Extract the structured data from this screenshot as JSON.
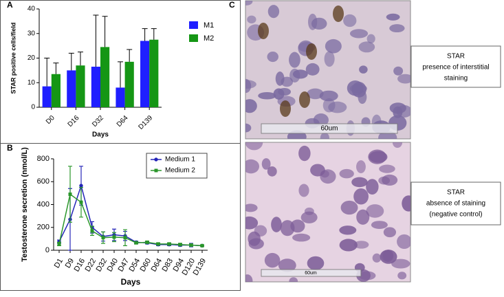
{
  "chart_data": [
    {
      "type": "bar",
      "panel_label": "A",
      "y_label": "STAR positive cells/field",
      "x_label": "Days",
      "categories": [
        "D0",
        "D16",
        "D32",
        "D64",
        "D139"
      ],
      "series": [
        {
          "name": "M1",
          "color": "#1f1fff",
          "values": [
            8.5,
            15,
            16.5,
            8,
            27
          ],
          "errors": [
            11.5,
            7,
            21,
            10.5,
            5
          ]
        },
        {
          "name": "M2",
          "color": "#159615",
          "values": [
            13.5,
            17,
            24.5,
            18.5,
            27.5
          ],
          "errors": [
            4.5,
            5.5,
            12.5,
            5,
            4.5
          ]
        }
      ],
      "ylim": [
        0,
        40
      ],
      "yticks": [
        0,
        10,
        20,
        30,
        40
      ]
    },
    {
      "type": "line",
      "panel_label": "B",
      "y_label": "Testosterone secretion (nmol/L)",
      "x_label": "Days",
      "categories": [
        "D1",
        "D9",
        "D16",
        "D22",
        "D32",
        "D40",
        "D47",
        "D54",
        "D60",
        "D64",
        "D83",
        "D94",
        "D120",
        "D139"
      ],
      "series": [
        {
          "name": "Medium 1",
          "color": "#2424b8",
          "values": [
            75,
            270,
            565,
            200,
            120,
            135,
            125,
            70,
            65,
            50,
            50,
            45,
            45,
            40
          ],
          "errors": [
            15,
            270,
            170,
            50,
            40,
            50,
            40,
            10,
            10,
            10,
            10,
            10,
            15,
            5
          ]
        },
        {
          "name": "Medium 2",
          "color": "#2a962a",
          "values": [
            55,
            490,
            420,
            170,
            110,
            115,
            110,
            65,
            70,
            55,
            55,
            50,
            45,
            40
          ],
          "errors": [
            15,
            245,
            130,
            40,
            50,
            40,
            70,
            10,
            10,
            10,
            10,
            10,
            10,
            5
          ]
        }
      ],
      "ylim": [
        0,
        800
      ],
      "yticks": [
        0,
        200,
        400,
        600,
        800
      ]
    }
  ],
  "figure_c": {
    "panel_label": "C",
    "images": [
      {
        "caption": [
          "STAR",
          "presence of interstitial",
          "staining"
        ],
        "scale_bar": "60um"
      },
      {
        "caption": [
          "STAR",
          "absence of staining",
          "(negative control)"
        ],
        "scale_bar": "60um"
      }
    ]
  }
}
